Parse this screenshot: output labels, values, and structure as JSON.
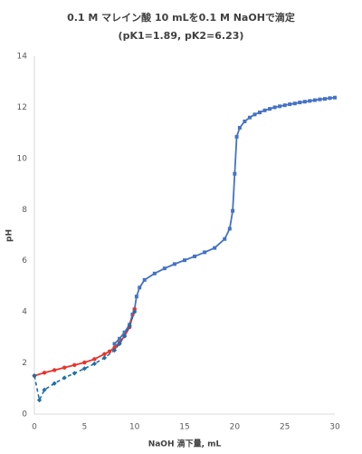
{
  "chart_data": {
    "type": "line",
    "title": "0.1 M マレイン酸 10 mLを0.1 M NaOHで滴定",
    "subtitle": "(pK1=1.89, pK2=6.23)",
    "x_label": "NaOH 滴下量, mL",
    "y_label": "pH",
    "xlim": [
      0,
      30
    ],
    "xticks": [
      0,
      5,
      10,
      15,
      20,
      25,
      30
    ],
    "ylim": [
      0,
      14
    ],
    "yticks": [
      0,
      2,
      4,
      6,
      8,
      10,
      12,
      14
    ],
    "grid": false,
    "series": [
      {
        "color": "#4472c4",
        "marker": "square",
        "dashed": false,
        "x": [
          8,
          8.5,
          9,
          9.5,
          9.8,
          10,
          10.2,
          10.5,
          11,
          12,
          13,
          14,
          15,
          16,
          17,
          18,
          19,
          19.5,
          19.8,
          20,
          20.2,
          20.5,
          21,
          21.5,
          22,
          22.5,
          23,
          23.5,
          24,
          24.5,
          25,
          25.5,
          26,
          26.5,
          27,
          27.5,
          28,
          28.5,
          29,
          29.5,
          30
        ],
        "values": [
          2.75,
          2.95,
          3.2,
          3.5,
          3.9,
          4.1,
          4.6,
          4.95,
          5.25,
          5.5,
          5.7,
          5.87,
          6.02,
          6.17,
          6.33,
          6.5,
          6.85,
          7.25,
          7.95,
          9.4,
          10.85,
          11.2,
          11.45,
          11.6,
          11.72,
          11.8,
          11.88,
          11.94,
          12.0,
          12.04,
          12.08,
          12.12,
          12.15,
          12.19,
          12.22,
          12.25,
          12.28,
          12.31,
          12.33,
          12.36,
          12.38
        ]
      },
      {
        "color": "#e8332a",
        "marker": "circle",
        "dashed": false,
        "x": [
          0,
          1,
          2,
          3,
          4,
          5,
          6,
          7,
          7.5,
          8,
          8.5,
          9,
          9.5,
          10
        ],
        "values": [
          1.5,
          1.62,
          1.72,
          1.82,
          1.92,
          2.02,
          2.15,
          2.35,
          2.45,
          2.6,
          2.8,
          3.05,
          3.4,
          4.1
        ]
      },
      {
        "color": "#1f6fa8",
        "marker": "diamond",
        "dashed": true,
        "x": [
          0,
          0.5,
          1,
          2,
          3,
          4,
          5,
          6,
          7,
          8,
          8.5,
          9,
          9.5,
          10
        ],
        "values": [
          1.5,
          0.55,
          0.95,
          1.2,
          1.42,
          1.6,
          1.78,
          1.97,
          2.2,
          2.5,
          2.75,
          3.05,
          3.45,
          4.0
        ]
      }
    ]
  }
}
